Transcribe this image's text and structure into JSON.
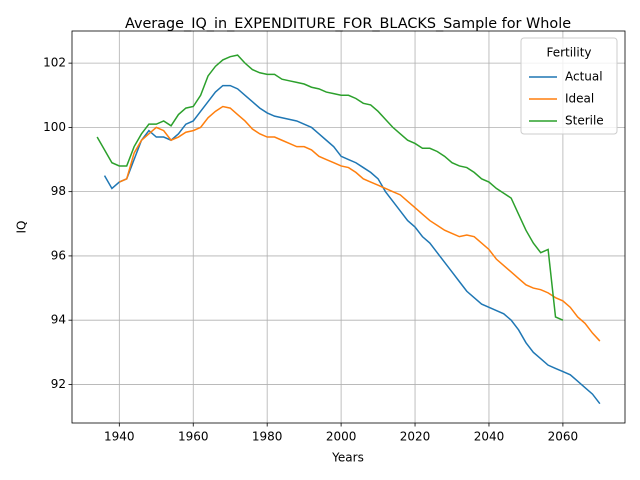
{
  "chart_data": {
    "type": "line",
    "title": "Average_IQ_in_EXPENDITURE_FOR_BLACKS_Sample for Whole",
    "x_label": "Years",
    "y_label": "IQ",
    "legend_title": "Fertility",
    "legend": "upper right",
    "grid": true,
    "x": [
      1934,
      1936,
      1938,
      1940,
      1942,
      1944,
      1946,
      1948,
      1950,
      1952,
      1954,
      1956,
      1958,
      1960,
      1962,
      1964,
      1966,
      1968,
      1970,
      1972,
      1974,
      1976,
      1978,
      1980,
      1982,
      1984,
      1986,
      1988,
      1990,
      1992,
      1994,
      1996,
      1998,
      2000,
      2002,
      2004,
      2006,
      2008,
      2010,
      2012,
      2014,
      2016,
      2018,
      2020,
      2022,
      2024,
      2026,
      2028,
      2030,
      2032,
      2034,
      2036,
      2038,
      2040,
      2042,
      2044,
      2046,
      2048,
      2050,
      2052,
      2054,
      2056,
      2058,
      2060,
      2062,
      2064,
      2066,
      2068,
      2070
    ],
    "series": [
      {
        "name": "Actual",
        "color": "#1f77b4",
        "values": [
          null,
          98.5,
          98.1,
          98.3,
          98.4,
          99.0,
          99.6,
          99.9,
          99.7,
          99.7,
          99.6,
          99.8,
          100.1,
          100.2,
          100.5,
          100.8,
          101.1,
          101.3,
          101.3,
          101.2,
          101.0,
          100.8,
          100.6,
          100.45,
          100.35,
          100.3,
          100.25,
          100.2,
          100.1,
          100.0,
          99.8,
          99.6,
          99.4,
          99.1,
          99.0,
          98.9,
          98.75,
          98.6,
          98.4,
          98.0,
          97.7,
          97.4,
          97.1,
          96.9,
          96.6,
          96.4,
          96.1,
          95.8,
          95.5,
          95.2,
          94.9,
          94.7,
          94.5,
          94.4,
          94.3,
          94.2,
          94.0,
          93.7,
          93.3,
          93.0,
          92.8,
          92.6,
          92.5,
          92.4,
          92.3,
          92.1,
          91.9,
          91.7,
          91.4
        ]
      },
      {
        "name": "Ideal",
        "color": "#ff7f0e",
        "values": [
          null,
          null,
          null,
          98.3,
          98.4,
          99.2,
          99.6,
          99.8,
          100.0,
          99.9,
          99.6,
          99.7,
          99.85,
          99.9,
          100.0,
          100.3,
          100.5,
          100.65,
          100.6,
          100.4,
          100.2,
          99.95,
          99.8,
          99.7,
          99.7,
          99.6,
          99.5,
          99.4,
          99.4,
          99.3,
          99.1,
          99.0,
          98.9,
          98.8,
          98.75,
          98.6,
          98.4,
          98.3,
          98.2,
          98.1,
          98.0,
          97.9,
          97.7,
          97.5,
          97.3,
          97.1,
          96.95,
          96.8,
          96.7,
          96.6,
          96.65,
          96.6,
          96.4,
          96.2,
          95.9,
          95.7,
          95.5,
          95.3,
          95.1,
          95.0,
          94.95,
          94.85,
          94.7,
          94.6,
          94.4,
          94.1,
          93.9,
          93.6,
          93.35
        ]
      },
      {
        "name": "Sterile",
        "color": "#2ca02c",
        "values": [
          99.7,
          99.3,
          98.9,
          98.8,
          98.8,
          99.4,
          99.8,
          100.1,
          100.1,
          100.2,
          100.05,
          100.4,
          100.6,
          100.65,
          101.0,
          101.6,
          101.9,
          102.1,
          102.2,
          102.25,
          102.0,
          101.8,
          101.7,
          101.65,
          101.65,
          101.5,
          101.45,
          101.4,
          101.35,
          101.25,
          101.2,
          101.1,
          101.05,
          101.0,
          101.0,
          100.9,
          100.75,
          100.7,
          100.5,
          100.25,
          100.0,
          99.8,
          99.6,
          99.5,
          99.35,
          99.35,
          99.25,
          99.1,
          98.9,
          98.8,
          98.75,
          98.6,
          98.4,
          98.3,
          98.1,
          97.95,
          97.8,
          97.3,
          96.8,
          96.4,
          96.1,
          96.2,
          94.1,
          94.0,
          null,
          null,
          null,
          null,
          null
        ]
      }
    ],
    "xlim": [
      1927.2,
      2076.8
    ],
    "ylim": [
      90.8,
      103.0
    ],
    "xticks": [
      1940,
      1960,
      1980,
      2000,
      2020,
      2040,
      2060
    ],
    "yticks": [
      92,
      94,
      96,
      98,
      100,
      102
    ]
  }
}
